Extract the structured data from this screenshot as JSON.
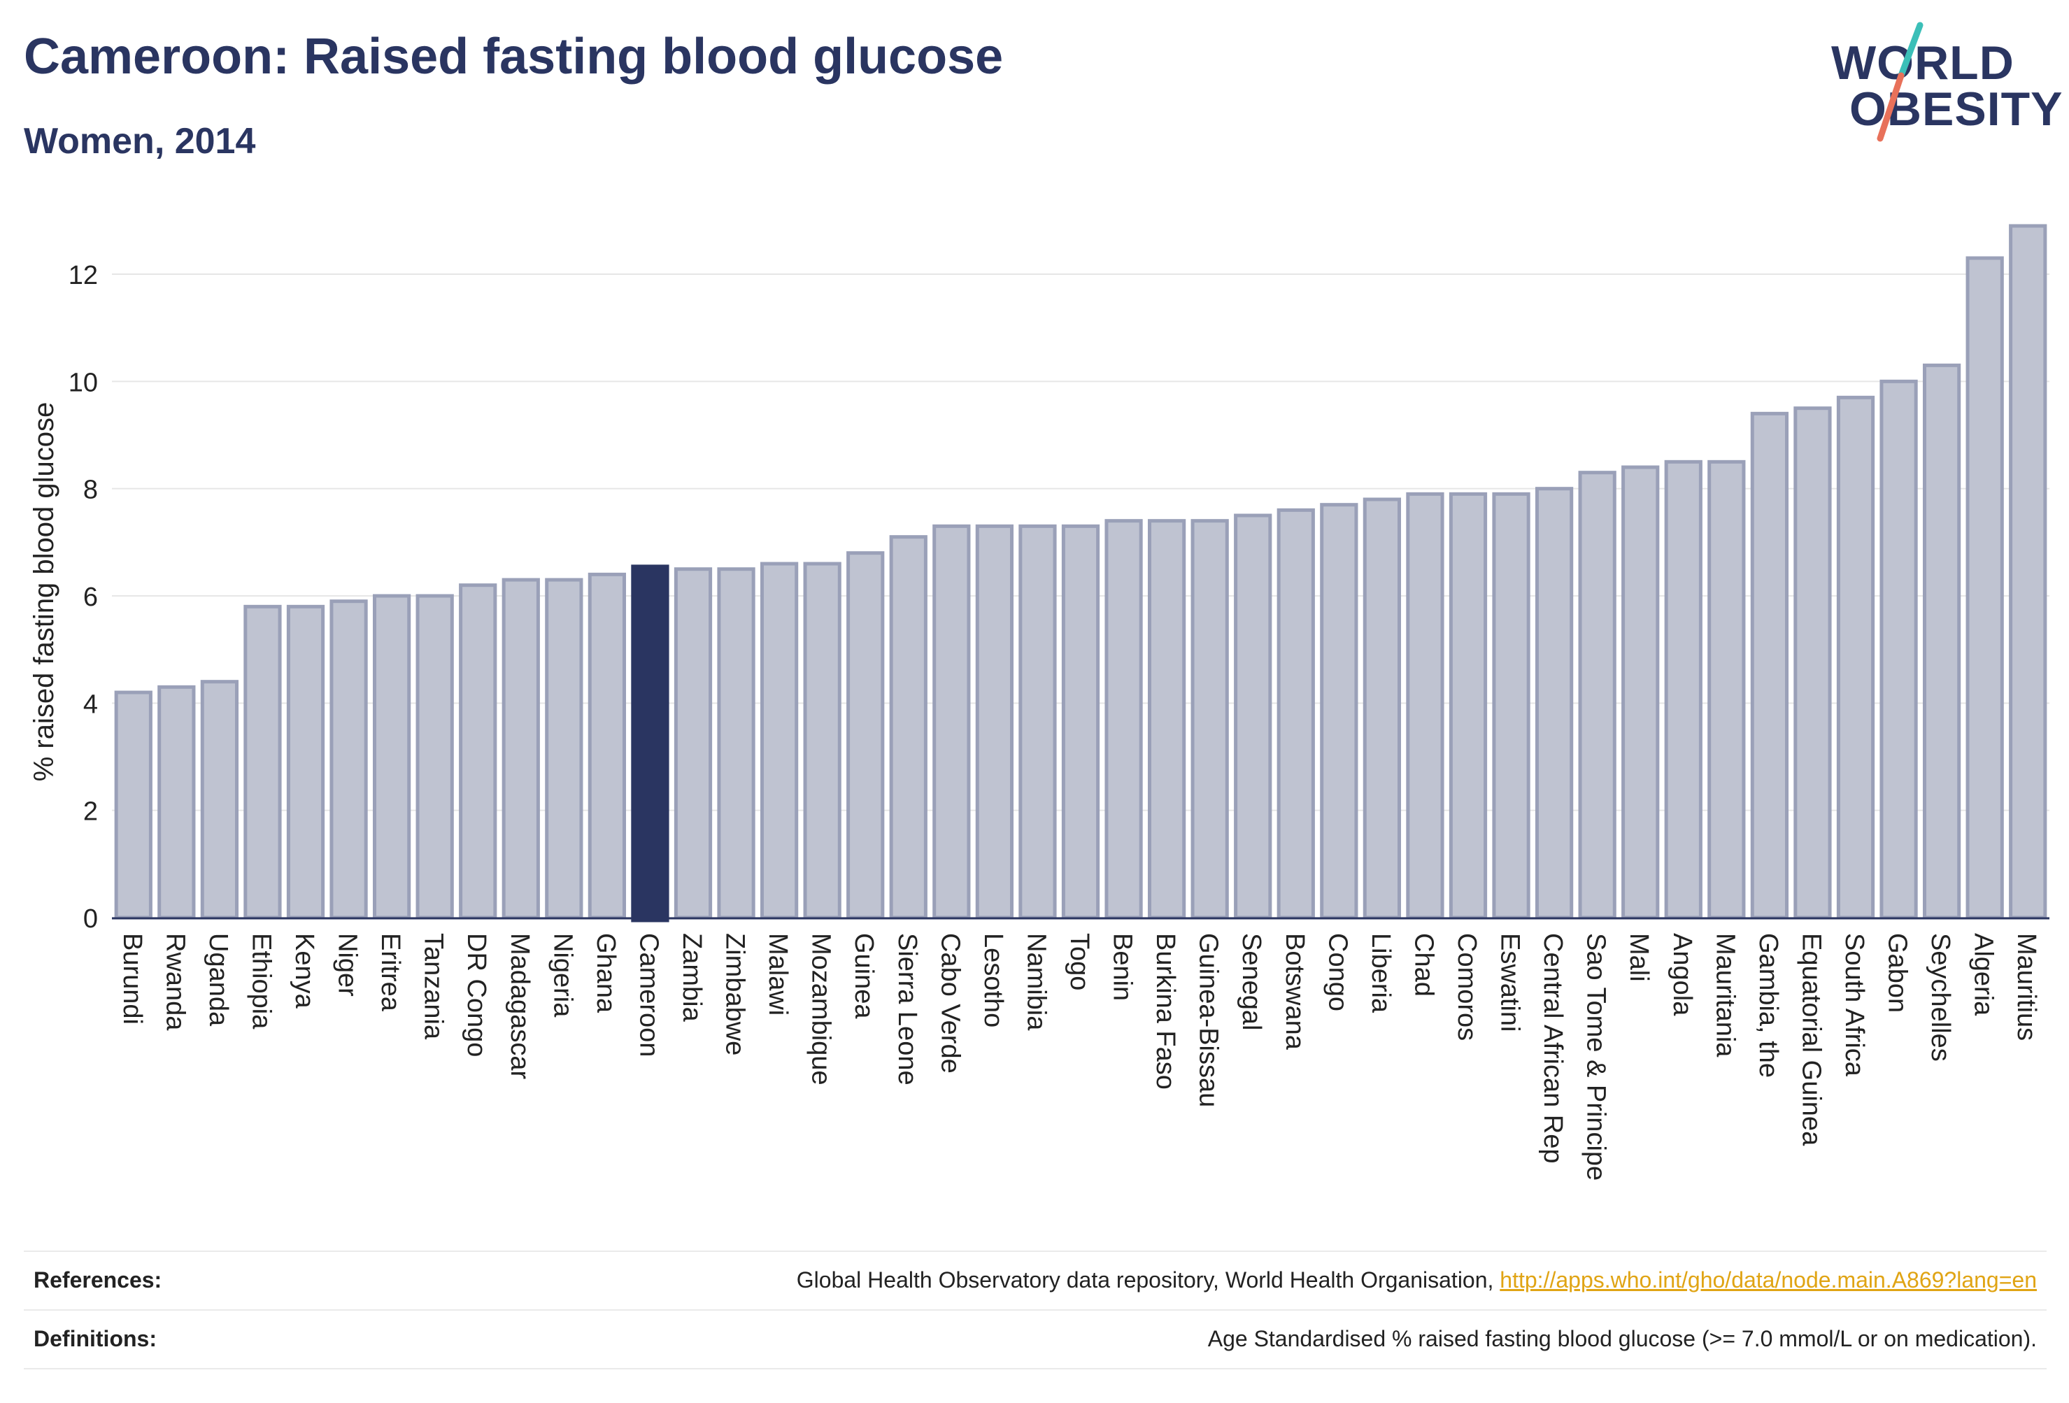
{
  "header": {
    "title": "Cameroon: Raised fasting blood glucose",
    "subtitle": "Women, 2014"
  },
  "logo": {
    "line1": "WORLD",
    "line2": "OBESITY",
    "accent_color": "#3bbfb8",
    "accent_color2": "#e8715a"
  },
  "chart_data": {
    "type": "bar",
    "ylabel": "% raised fasting blood glucose",
    "ylim": [
      0,
      13.2
    ],
    "yticks": [
      0,
      2,
      4,
      6,
      8,
      10,
      12
    ],
    "grid": true,
    "highlight": "Cameroon",
    "colors": {
      "bar": "#bfc3d1",
      "bar_edge": "#9aa0b8",
      "highlight": "#2a3561"
    },
    "categories": [
      "Burundi",
      "Rwanda",
      "Uganda",
      "Ethiopia",
      "Kenya",
      "Niger",
      "Eritrea",
      "Tanzania",
      "DR Congo",
      "Madagascar",
      "Nigeria",
      "Ghana",
      "Cameroon",
      "Zambia",
      "Zimbabwe",
      "Malawi",
      "Mozambique",
      "Guinea",
      "Sierra Leone",
      "Cabo Verde",
      "Lesotho",
      "Namibia",
      "Togo",
      "Benin",
      "Burkina Faso",
      "Guinea-Bissau",
      "Senegal",
      "Botswana",
      "Congo",
      "Liberia",
      "Chad",
      "Comoros",
      "Eswatini",
      "Central African Rep",
      "Sao Tome & Principe",
      "Mali",
      "Angola",
      "Mauritania",
      "Gambia, the",
      "Equatorial Guinea",
      "South Africa",
      "Gabon",
      "Seychelles",
      "Algeria",
      "Mauritius"
    ],
    "values": [
      4.2,
      4.3,
      4.4,
      5.8,
      5.8,
      5.9,
      6.0,
      6.0,
      6.2,
      6.3,
      6.3,
      6.4,
      6.55,
      6.5,
      6.5,
      6.6,
      6.6,
      6.8,
      7.1,
      7.3,
      7.3,
      7.3,
      7.3,
      7.4,
      7.4,
      7.4,
      7.5,
      7.6,
      7.7,
      7.8,
      7.9,
      7.9,
      7.9,
      8.0,
      8.3,
      8.4,
      8.5,
      8.5,
      9.4,
      9.5,
      9.7,
      10.0,
      10.3,
      12.3,
      12.9
    ]
  },
  "footer": {
    "references_label": "References:",
    "references_text": "Global Health Observatory data repository, World Health Organisation, ",
    "references_link": "http://apps.who.int/gho/data/node.main.A869?lang=en",
    "definitions_label": "Definitions:",
    "definitions_text": "Age Standardised % raised fasting blood glucose (>= 7.0 mmol/L or on medication)."
  }
}
